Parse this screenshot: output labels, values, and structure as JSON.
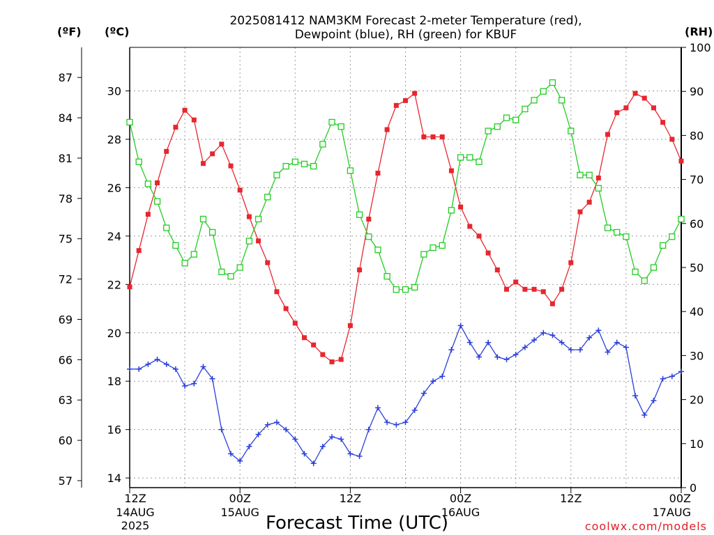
{
  "chart_data": {
    "type": "line",
    "title": "2025081412 NAM3KM Forecast 2-meter Temperature (red),",
    "subtitle": "Dewpoint (blue), RH (green) for KBUF",
    "xlabel": "Forecast Time (UTC)",
    "credit": "coolwx.com/models",
    "y_left_outer_unit": "(ºF)",
    "y_left_inner_unit": "(ºC)",
    "y_right_unit": "(RH)",
    "ylim_c": [
      13.6,
      31.8
    ],
    "ylim_rh": [
      0,
      100
    ],
    "x_hours_range": [
      0,
      60
    ],
    "f_ticks": [
      "57",
      "60",
      "63",
      "66",
      "69",
      "72",
      "75",
      "78",
      "81",
      "84",
      "87"
    ],
    "c_ticks": [
      "14",
      "16",
      "18",
      "20",
      "22",
      "24",
      "26",
      "28",
      "30"
    ],
    "rh_ticks": [
      "0",
      "10",
      "20",
      "30",
      "40",
      "50",
      "60",
      "70",
      "80",
      "90",
      "100"
    ],
    "x_ticks": [
      {
        "h": 0,
        "line1": "12Z",
        "line2": "14AUG",
        "line3": "2025"
      },
      {
        "h": 12,
        "line1": "00Z",
        "line2": "15AUG",
        "line3": ""
      },
      {
        "h": 24,
        "line1": "12Z",
        "line2": "",
        "line3": ""
      },
      {
        "h": 36,
        "line1": "00Z",
        "line2": "16AUG",
        "line3": ""
      },
      {
        "h": 48,
        "line1": "12Z",
        "line2": "",
        "line3": ""
      },
      {
        "h": 60,
        "line1": "00Z",
        "line2": "17AUG",
        "line3": ""
      }
    ],
    "series": [
      {
        "name": "Temperature",
        "axis": "c",
        "color": "#e8262e",
        "marker": "filled-square",
        "values": [
          21.9,
          23.4,
          24.9,
          26.2,
          27.5,
          28.5,
          29.2,
          28.8,
          27.0,
          27.4,
          27.8,
          26.9,
          25.9,
          24.8,
          23.8,
          22.9,
          21.7,
          21.0,
          20.4,
          19.8,
          19.5,
          19.1,
          18.8,
          18.9,
          20.3,
          22.6,
          24.7,
          26.6,
          28.4,
          29.4,
          29.6,
          29.9,
          28.1,
          28.1,
          28.1,
          26.7,
          25.2,
          24.4,
          24.0,
          23.3,
          22.6,
          21.8,
          22.1,
          21.8,
          21.8,
          21.7,
          21.2,
          21.8,
          22.9,
          25.0,
          25.4,
          26.4,
          28.2,
          29.1,
          29.3,
          29.9,
          29.7,
          29.3,
          28.7,
          28.0,
          27.1
        ]
      },
      {
        "name": "Dewpoint",
        "axis": "c",
        "color": "#2a3fd8",
        "marker": "plus",
        "values": [
          18.5,
          18.5,
          18.7,
          18.9,
          18.7,
          18.5,
          17.8,
          17.9,
          18.6,
          18.1,
          16.0,
          15.0,
          14.7,
          15.3,
          15.8,
          16.2,
          16.3,
          16.0,
          15.6,
          15.0,
          14.6,
          15.3,
          15.7,
          15.6,
          15.0,
          14.9,
          16.0,
          16.9,
          16.3,
          16.2,
          16.3,
          16.8,
          17.5,
          18.0,
          18.2,
          19.3,
          20.3,
          19.6,
          19.0,
          19.6,
          19.0,
          18.9,
          19.1,
          19.4,
          19.7,
          20.0,
          19.9,
          19.6,
          19.3,
          19.3,
          19.8,
          20.1,
          19.2,
          19.6,
          19.4,
          17.4,
          16.6,
          17.2,
          18.1,
          18.2,
          18.4
        ]
      },
      {
        "name": "RH",
        "axis": "rh",
        "color": "#22cc22",
        "marker": "open-square",
        "values": [
          83,
          74,
          69,
          65,
          59,
          55,
          51,
          53,
          61,
          58,
          49,
          48,
          50,
          56,
          61,
          66,
          71,
          73,
          74,
          73.5,
          73,
          78,
          83,
          82,
          72,
          62,
          57,
          54,
          48,
          45,
          45,
          45.5,
          53,
          54.5,
          55,
          63,
          75,
          75,
          74,
          81,
          82,
          84,
          83.5,
          86,
          88,
          90,
          92,
          88,
          81,
          71,
          71,
          68,
          59,
          58,
          57,
          49,
          47,
          50,
          55,
          57,
          61
        ]
      }
    ]
  }
}
